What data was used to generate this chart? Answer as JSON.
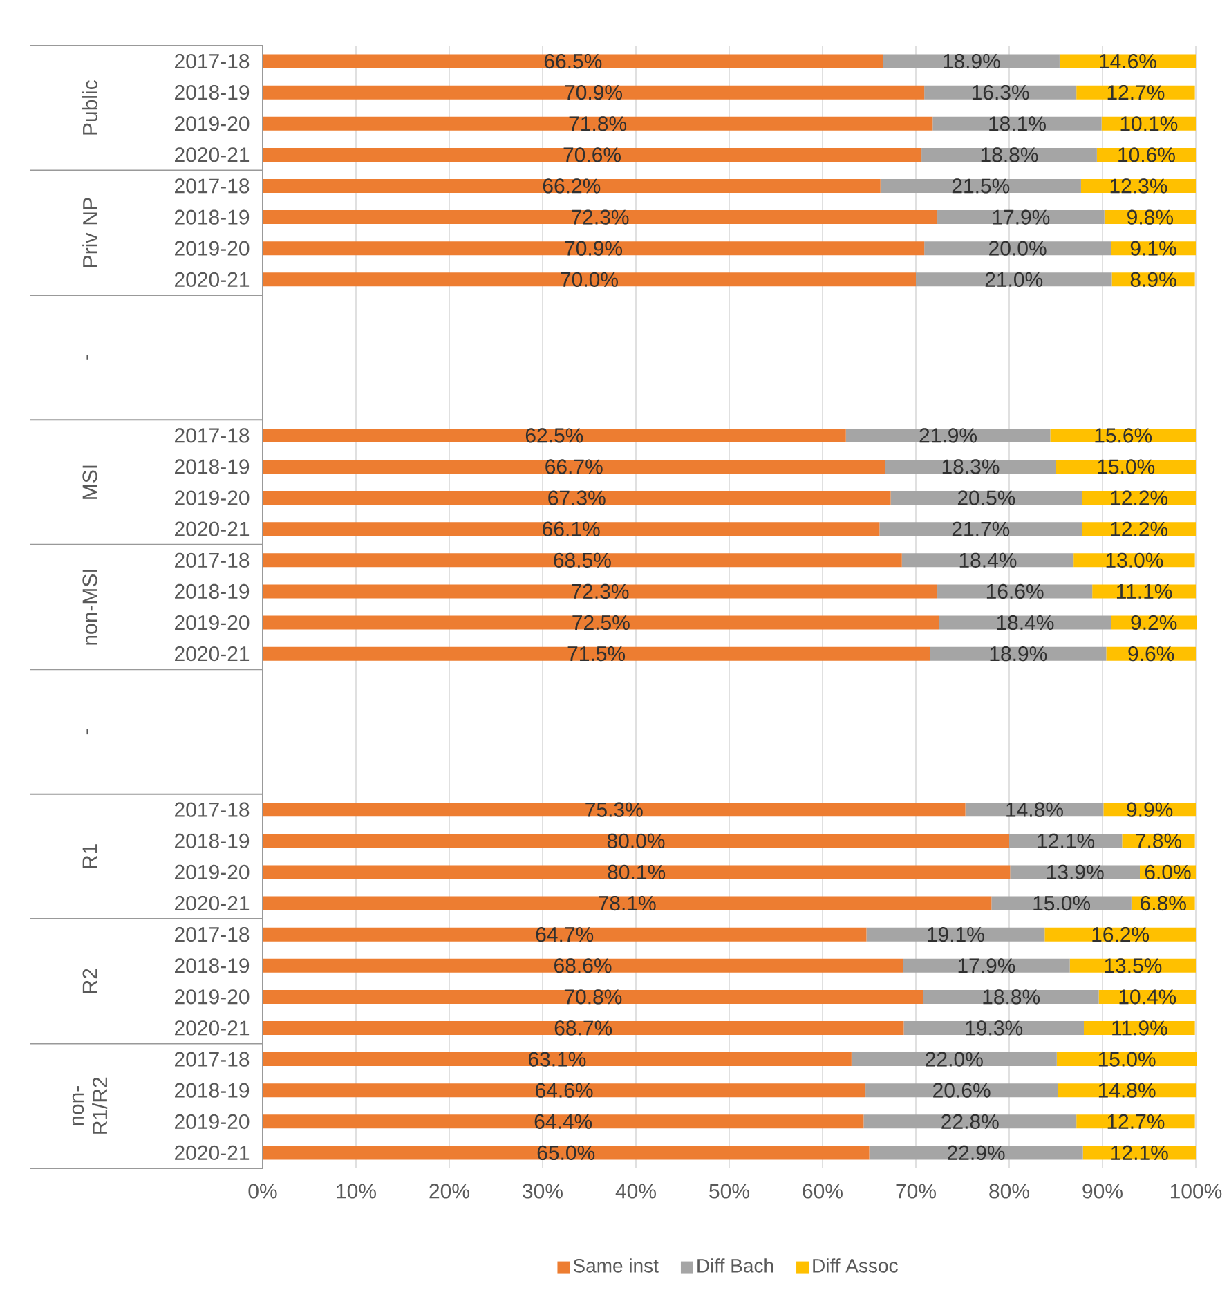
{
  "chart_data": {
    "type": "bar",
    "orientation": "horizontal",
    "stacked": true,
    "categories": [
      "2017-18",
      "2018-19",
      "2019-20",
      "2020-21",
      "2017-18",
      "2018-19",
      "2019-20",
      "2020-21",
      null,
      null,
      null,
      null,
      "2017-18",
      "2018-19",
      "2019-20",
      "2020-21",
      "2017-18",
      "2018-19",
      "2019-20",
      "2020-21",
      null,
      null,
      null,
      null,
      "2017-18",
      "2018-19",
      "2019-20",
      "2020-21",
      "2017-18",
      "2018-19",
      "2019-20",
      "2020-21",
      "2017-18",
      "2018-19",
      "2019-20",
      "2020-21"
    ],
    "annotations": [
      "Public",
      "Priv NP",
      "-",
      "MSI",
      "non-MSI",
      "-",
      "R1",
      "R2",
      "non-R1/R2"
    ],
    "series": [
      {
        "name": "Same inst",
        "color": "#ed7d31",
        "values": [
          66.5,
          70.9,
          71.8,
          70.6,
          66.2,
          72.3,
          70.9,
          70.0,
          null,
          null,
          null,
          null,
          62.5,
          66.7,
          67.3,
          66.1,
          68.5,
          72.3,
          72.5,
          71.5,
          null,
          null,
          null,
          null,
          75.3,
          80.0,
          80.1,
          78.1,
          64.7,
          68.6,
          70.8,
          68.7,
          63.1,
          64.6,
          64.4,
          65.0
        ],
        "value_labels": [
          "66.5%",
          "70.9%",
          "71.8%",
          "70.6%",
          "66.2%",
          "72.3%",
          "70.9%",
          "70.0%",
          null,
          null,
          null,
          null,
          "62.5%",
          "66.7%",
          "67.3%",
          "66.1%",
          "68.5%",
          "72.3%",
          "72.5%",
          "71.5%",
          null,
          null,
          null,
          null,
          "75.3%",
          "80.0%",
          "80.1%",
          "78.1%",
          "64.7%",
          "68.6%",
          "70.8%",
          "68.7%",
          "63.1%",
          "64.6%",
          "64.4%",
          "65.0%"
        ]
      },
      {
        "name": "Diff Bach",
        "color": "#a5a5a5",
        "values": [
          18.9,
          16.3,
          18.1,
          18.8,
          21.5,
          17.9,
          20.0,
          21.0,
          null,
          null,
          null,
          null,
          21.9,
          18.3,
          20.5,
          21.7,
          18.4,
          16.6,
          18.4,
          18.9,
          null,
          null,
          null,
          null,
          14.8,
          12.1,
          13.9,
          15.0,
          19.1,
          17.9,
          18.8,
          19.3,
          22.0,
          20.6,
          22.8,
          22.9
        ],
        "value_labels": [
          "18.9%",
          "16.3%",
          "18.1%",
          "18.8%",
          "21.5%",
          "17.9%",
          "20.0%",
          "21.0%",
          null,
          null,
          null,
          null,
          "21.9%",
          "18.3%",
          "20.5%",
          "21.7%",
          "18.4%",
          "16.6%",
          "18.4%",
          "18.9%",
          null,
          null,
          null,
          null,
          "14.8%",
          "12.1%",
          "13.9%",
          "15.0%",
          "19.1%",
          "17.9%",
          "18.8%",
          "19.3%",
          "22.0%",
          "20.6%",
          "22.8%",
          "22.9%"
        ]
      },
      {
        "name": "Diff Assoc",
        "color": "#ffc000",
        "values": [
          14.6,
          12.7,
          10.1,
          10.6,
          12.3,
          9.8,
          9.1,
          8.9,
          null,
          null,
          null,
          null,
          15.6,
          15.0,
          12.2,
          12.2,
          13.0,
          11.1,
          9.2,
          9.6,
          null,
          null,
          null,
          null,
          9.9,
          7.8,
          6.0,
          6.8,
          16.2,
          13.5,
          10.4,
          11.9,
          15.0,
          14.8,
          12.7,
          12.1
        ],
        "value_labels": [
          "14.6%",
          "12.7%",
          "10.1%",
          "10.6%",
          "12.3%",
          "9.8%",
          "9.1%",
          "8.9%",
          null,
          null,
          null,
          null,
          "15.6%",
          "15.0%",
          "12.2%",
          "12.2%",
          "13.0%",
          "11.1%",
          "9.2%",
          "9.6%",
          null,
          null,
          null,
          null,
          "9.9%",
          "7.8%",
          "6.0%",
          "6.8%",
          "16.2%",
          "13.5%",
          "10.4%",
          "11.9%",
          "15.0%",
          "14.8%",
          "12.7%",
          "12.1%"
        ]
      }
    ],
    "xlim": [
      0,
      100
    ],
    "xticks": [
      {
        "value": 0,
        "label": "0%"
      },
      {
        "value": 10,
        "label": "10%"
      },
      {
        "value": 20,
        "label": "20%"
      },
      {
        "value": 30,
        "label": "30%"
      },
      {
        "value": 40,
        "label": "40%"
      },
      {
        "value": 50,
        "label": "50%"
      },
      {
        "value": 60,
        "label": "60%"
      },
      {
        "value": 70,
        "label": "70%"
      },
      {
        "value": 80,
        "label": "80%"
      },
      {
        "value": 90,
        "label": "90%"
      },
      {
        "value": 100,
        "label": "100%"
      }
    ],
    "grid": "x",
    "legend": "bottom"
  }
}
